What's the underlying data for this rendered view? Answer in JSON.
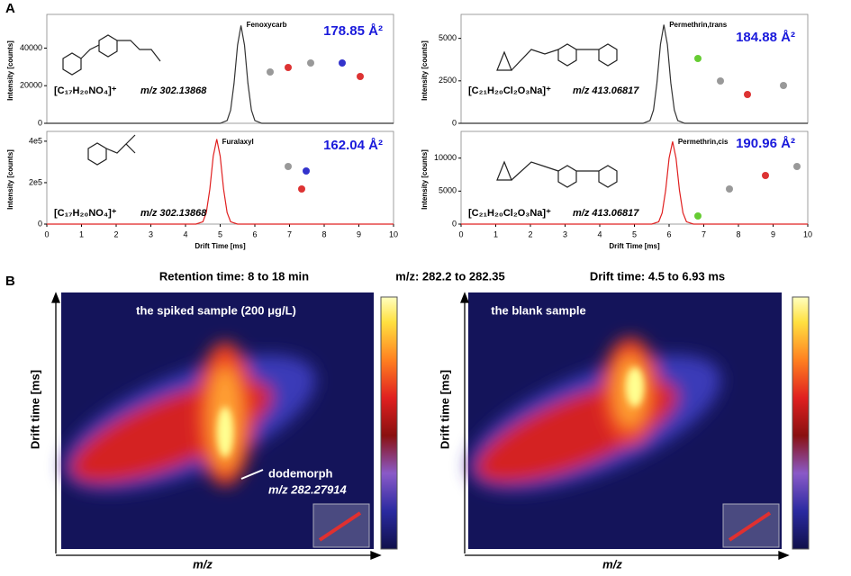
{
  "panel_labels": [
    "A",
    "B"
  ],
  "chart_data": [
    {
      "type": "line",
      "annotation": "Fenoxycarb",
      "ccs": "178.85 Å²",
      "formula": "[C₁₇H₂₀NO₄]⁺",
      "mz": "m/z 302.13868",
      "ylabel": "Intensity [counts]",
      "color": "#333333",
      "x": [
        0,
        5.0,
        5.2,
        5.3,
        5.4,
        5.5,
        5.6,
        5.7,
        5.8,
        5.9,
        6.0,
        6.2,
        10
      ],
      "values": [
        0,
        0,
        1460,
        7000,
        21300,
        41600,
        52000,
        41600,
        21300,
        7000,
        1460,
        0,
        0
      ],
      "xlim": [
        0,
        10
      ],
      "ylim": [
        0,
        56000
      ],
      "yticks": [
        0,
        20000,
        40000
      ]
    },
    {
      "type": "line",
      "annotation": "Furalaxyl",
      "ccs": "162.04 Å²",
      "formula": "[C₁₇H₂₀NO₄]⁺",
      "mz": "m/z 302.13868",
      "ylabel": "Intensity [counts]",
      "xlabel": "Drift Time [ms]",
      "color": "#e02020",
      "x": [
        0,
        4.3,
        4.5,
        4.6,
        4.7,
        4.8,
        4.9,
        5.0,
        5.1,
        5.2,
        5.3,
        5.5,
        10
      ],
      "values": [
        0,
        0,
        11500,
        55400,
        168000,
        328000,
        410000,
        328000,
        168000,
        55400,
        11500,
        0,
        0
      ],
      "xlim": [
        0,
        10
      ],
      "ylim": [
        0,
        430000
      ],
      "yticks": [
        0,
        {
          "value": 200000,
          "label": "2e5"
        },
        {
          "value": 400000,
          "label": "4e5"
        }
      ],
      "xticks": [
        0,
        1,
        2,
        3,
        4,
        5,
        6,
        7,
        8,
        9,
        10
      ]
    },
    {
      "type": "line",
      "annotation": "Permethrin,trans",
      "ccs": "184.88 Å²",
      "formula": "[C₂₁H₂₀Cl₂O₃Na]⁺",
      "mz": "m/z 413.06817",
      "ylabel": "Intensity [counts]",
      "color": "#333333",
      "x": [
        0,
        5.25,
        5.45,
        5.55,
        5.65,
        5.75,
        5.85,
        5.95,
        6.05,
        6.15,
        6.25,
        6.45,
        10
      ],
      "values": [
        0,
        0,
        162,
        783,
        2380,
        4640,
        5800,
        4640,
        2380,
        783,
        162,
        0,
        0
      ],
      "xlim": [
        0,
        10
      ],
      "ylim": [
        0,
        6200
      ],
      "yticks": [
        0,
        2500,
        5000
      ]
    },
    {
      "type": "line",
      "annotation": "Permethrin,cis",
      "ccs": "190.96 Å²",
      "formula": "[C₂₁H₂₀Cl₂O₃Na]⁺",
      "mz": "m/z 413.06817",
      "ylabel": "Intensity [counts]",
      "xlabel": "Drift Time [ms]",
      "color": "#e02020",
      "x": [
        0,
        5.5,
        5.7,
        5.8,
        5.9,
        6.0,
        6.1,
        6.2,
        6.3,
        6.4,
        6.5,
        6.7,
        10
      ],
      "values": [
        0,
        0,
        350,
        1690,
        5130,
        10000,
        12500,
        10000,
        5130,
        1690,
        350,
        0,
        0
      ],
      "xlim": [
        0,
        10
      ],
      "ylim": [
        0,
        13500
      ],
      "yticks": [
        0,
        5000,
        10000
      ],
      "xticks": [
        0,
        1,
        2,
        3,
        4,
        5,
        6,
        7,
        8,
        9,
        10
      ]
    }
  ],
  "panel_b": {
    "headers": [
      "Retention time: 8 to 18 min",
      "m/z: 282.2 to 282.35",
      "Drift time: 4.5 to 6.93 ms"
    ],
    "left_title": "the spiked sample (200 μg/L)",
    "right_title": "the blank sample",
    "callout": [
      "dodemorph",
      "m/z 282.27914"
    ],
    "ylabel": "Drift time [ms]",
    "xlabel": "m/z"
  }
}
